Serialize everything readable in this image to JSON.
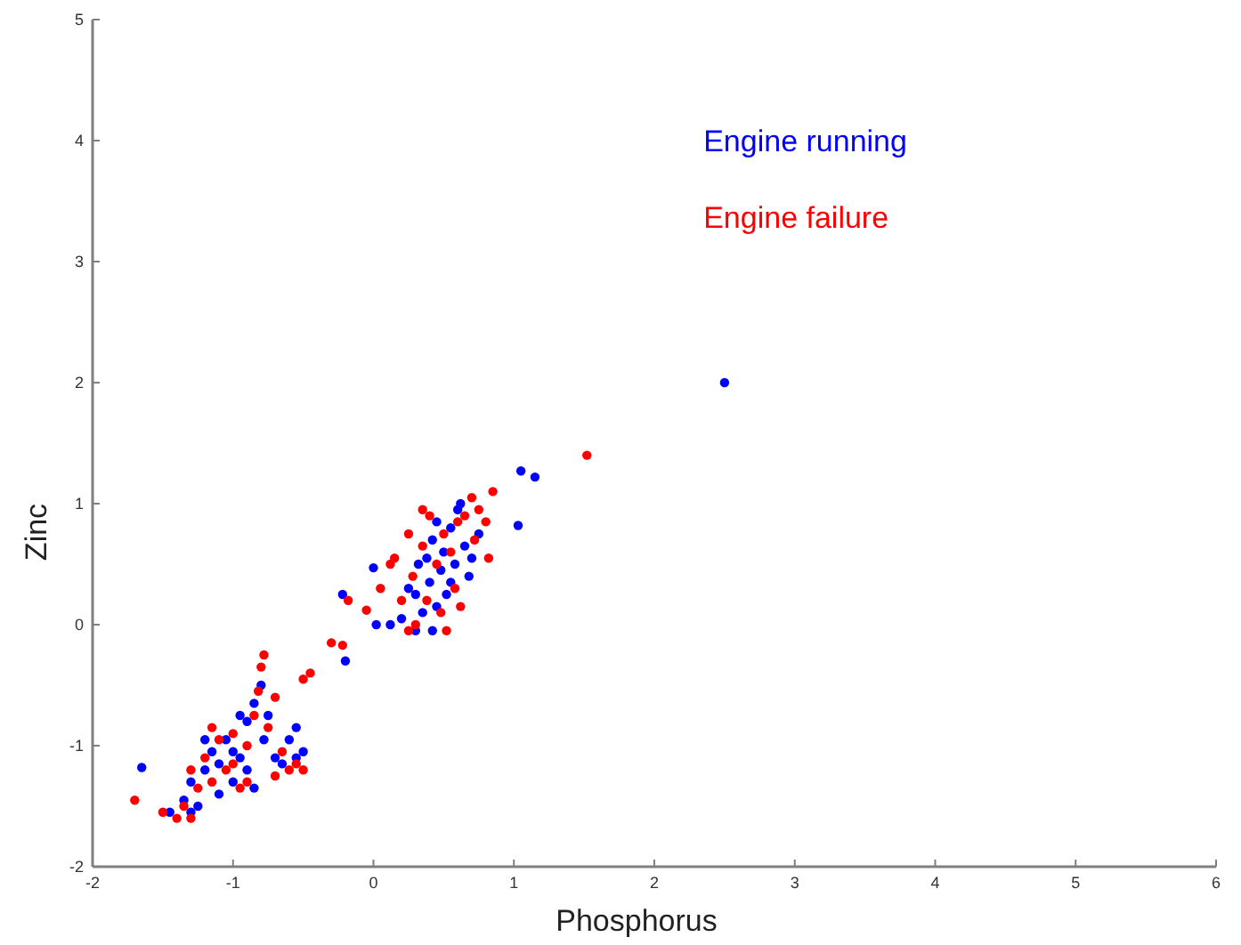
{
  "chart_data": {
    "type": "scatter",
    "xlabel": "Phosphorus",
    "ylabel": "Zinc",
    "xlim": [
      -2,
      6
    ],
    "ylim": [
      -2,
      5
    ],
    "xticks": [
      -2,
      -1,
      0,
      1,
      2,
      3,
      4,
      5,
      6
    ],
    "yticks": [
      -2,
      -1,
      0,
      1,
      2,
      3,
      4,
      5
    ],
    "grid": false,
    "legend": "top right",
    "marker": "circle",
    "series": [
      {
        "name": "Engine running",
        "color": "#0000ff",
        "x": [
          0.0,
          -0.22,
          0.02,
          0.12,
          0.2,
          0.25,
          0.3,
          0.32,
          0.35,
          0.38,
          0.4,
          0.42,
          0.45,
          0.48,
          0.5,
          0.52,
          0.55,
          0.58,
          0.6,
          0.62,
          0.65,
          0.68,
          0.7,
          0.75,
          0.3,
          0.42,
          0.55,
          0.45,
          1.05,
          1.15,
          1.03,
          2.5,
          -0.2,
          -1.65,
          -1.45,
          -1.35,
          -1.3,
          -1.25,
          -1.2,
          -1.15,
          -1.1,
          -1.05,
          -1.0,
          -0.95,
          -0.9,
          -0.85,
          -0.8,
          -0.75,
          -0.7,
          -0.65,
          -0.6,
          -0.55,
          -0.5,
          -1.1,
          -1.2,
          -0.95,
          -0.85,
          -1.3,
          -1.0,
          -0.9,
          -0.78,
          -0.55
        ],
        "values": [
          0.47,
          0.25,
          0.0,
          0.0,
          0.05,
          0.3,
          0.25,
          0.5,
          0.1,
          0.55,
          0.35,
          0.7,
          0.15,
          0.45,
          0.6,
          0.25,
          0.8,
          0.5,
          0.95,
          1.0,
          0.65,
          0.4,
          0.55,
          0.75,
          -0.05,
          -0.05,
          0.35,
          0.85,
          1.27,
          1.22,
          0.82,
          2.0,
          -0.3,
          -1.18,
          -1.55,
          -1.45,
          -1.3,
          -1.5,
          -1.2,
          -1.05,
          -1.4,
          -0.95,
          -1.3,
          -1.1,
          -0.8,
          -0.65,
          -0.5,
          -0.75,
          -1.1,
          -1.15,
          -0.95,
          -0.85,
          -1.05,
          -1.15,
          -0.95,
          -0.75,
          -1.35,
          -1.55,
          -1.05,
          -1.2,
          -0.95,
          -1.1
        ]
      },
      {
        "name": "Engine failure",
        "color": "#ff0000",
        "x": [
          -0.3,
          -0.22,
          -0.18,
          -0.05,
          0.05,
          0.12,
          0.15,
          0.2,
          0.25,
          0.28,
          0.3,
          0.35,
          0.38,
          0.4,
          0.45,
          0.48,
          0.5,
          0.52,
          0.55,
          0.58,
          0.6,
          0.62,
          0.65,
          0.7,
          0.72,
          0.75,
          0.8,
          0.82,
          0.85,
          0.35,
          0.25,
          1.52,
          -0.5,
          -0.45,
          -1.7,
          -1.5,
          -1.4,
          -1.35,
          -1.3,
          -1.25,
          -1.2,
          -1.15,
          -1.1,
          -1.05,
          -1.0,
          -0.95,
          -0.9,
          -0.85,
          -0.82,
          -0.8,
          -0.78,
          -0.75,
          -0.7,
          -0.65,
          -0.6,
          -0.55,
          -0.5,
          -1.15,
          -1.0,
          -0.9,
          -1.3,
          -0.7
        ],
        "values": [
          -0.15,
          -0.17,
          0.2,
          0.12,
          0.3,
          0.5,
          0.55,
          0.2,
          0.75,
          0.4,
          0.0,
          0.65,
          0.2,
          0.9,
          0.5,
          0.1,
          0.75,
          -0.05,
          0.6,
          0.3,
          0.85,
          0.15,
          0.9,
          1.05,
          0.7,
          0.95,
          0.85,
          0.55,
          1.1,
          0.95,
          -0.05,
          1.4,
          -0.45,
          -0.4,
          -1.45,
          -1.55,
          -1.6,
          -1.5,
          -1.2,
          -1.35,
          -1.1,
          -1.3,
          -0.95,
          -1.2,
          -0.9,
          -1.35,
          -1.0,
          -0.75,
          -0.55,
          -0.35,
          -0.25,
          -0.85,
          -0.6,
          -1.05,
          -1.2,
          -1.15,
          -1.2,
          -0.85,
          -1.15,
          -1.3,
          -1.6,
          -1.25
        ]
      }
    ]
  }
}
